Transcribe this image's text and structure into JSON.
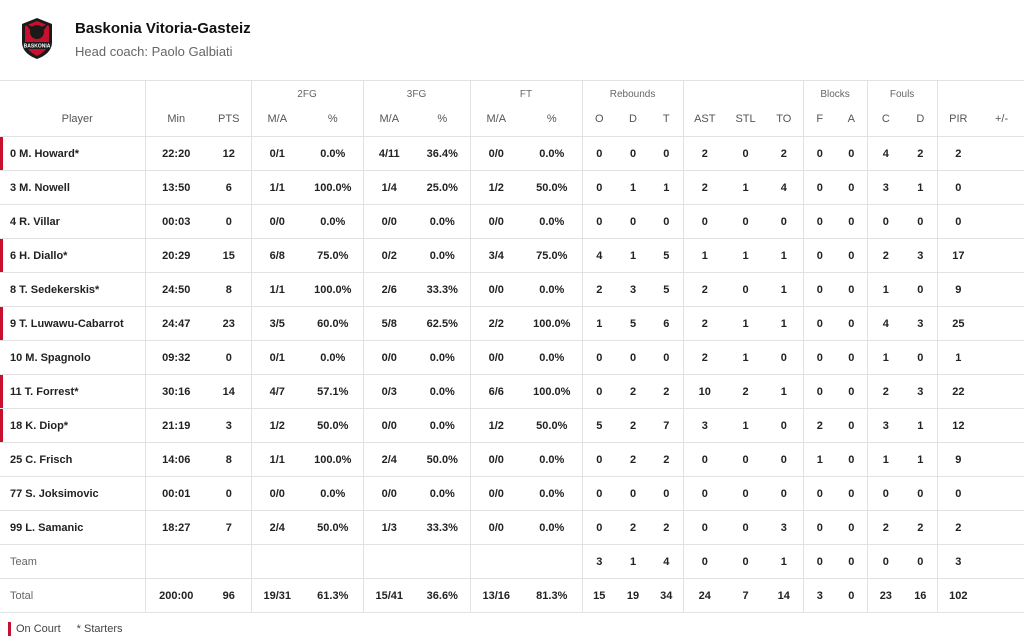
{
  "header": {
    "team_name": "Baskonia Vitoria-Gasteiz",
    "coach": "Head coach: Paolo Galbiati",
    "logo_text": "BASKONIA"
  },
  "colors": {
    "accent": "#c8102e",
    "border": "#e2e2e2"
  },
  "groups": {
    "fg2": "2FG",
    "fg3": "3FG",
    "ft": "FT",
    "reb": "Rebounds",
    "blk": "Blocks",
    "fouls": "Fouls"
  },
  "columns": [
    "Player",
    "Min",
    "PTS",
    "M/A",
    "%",
    "M/A",
    "%",
    "M/A",
    "%",
    "O",
    "D",
    "T",
    "AST",
    "STL",
    "TO",
    "F",
    "A",
    "C",
    "D",
    "PIR",
    "+/-"
  ],
  "players": [
    {
      "name": "0 M. Howard*",
      "on_court": true,
      "stats": [
        "22:20",
        "12",
        "0/1",
        "0.0%",
        "4/11",
        "36.4%",
        "0/0",
        "0.0%",
        "0",
        "0",
        "0",
        "2",
        "0",
        "2",
        "0",
        "0",
        "4",
        "2",
        "2",
        ""
      ]
    },
    {
      "name": "3 M. Nowell",
      "on_court": false,
      "stats": [
        "13:50",
        "6",
        "1/1",
        "100.0%",
        "1/4",
        "25.0%",
        "1/2",
        "50.0%",
        "0",
        "1",
        "1",
        "2",
        "1",
        "4",
        "0",
        "0",
        "3",
        "1",
        "0",
        ""
      ]
    },
    {
      "name": "4 R. Villar",
      "on_court": false,
      "stats": [
        "00:03",
        "0",
        "0/0",
        "0.0%",
        "0/0",
        "0.0%",
        "0/0",
        "0.0%",
        "0",
        "0",
        "0",
        "0",
        "0",
        "0",
        "0",
        "0",
        "0",
        "0",
        "0",
        ""
      ]
    },
    {
      "name": "6 H. Diallo*",
      "on_court": true,
      "stats": [
        "20:29",
        "15",
        "6/8",
        "75.0%",
        "0/2",
        "0.0%",
        "3/4",
        "75.0%",
        "4",
        "1",
        "5",
        "1",
        "1",
        "1",
        "0",
        "0",
        "2",
        "3",
        "17",
        ""
      ]
    },
    {
      "name": "8 T. Sedekerskis*",
      "on_court": false,
      "stats": [
        "24:50",
        "8",
        "1/1",
        "100.0%",
        "2/6",
        "33.3%",
        "0/0",
        "0.0%",
        "2",
        "3",
        "5",
        "2",
        "0",
        "1",
        "0",
        "0",
        "1",
        "0",
        "9",
        ""
      ]
    },
    {
      "name": "9 T. Luwawu-Cabarrot",
      "on_court": true,
      "stats": [
        "24:47",
        "23",
        "3/5",
        "60.0%",
        "5/8",
        "62.5%",
        "2/2",
        "100.0%",
        "1",
        "5",
        "6",
        "2",
        "1",
        "1",
        "0",
        "0",
        "4",
        "3",
        "25",
        ""
      ]
    },
    {
      "name": "10 M. Spagnolo",
      "on_court": false,
      "stats": [
        "09:32",
        "0",
        "0/1",
        "0.0%",
        "0/0",
        "0.0%",
        "0/0",
        "0.0%",
        "0",
        "0",
        "0",
        "2",
        "1",
        "0",
        "0",
        "0",
        "1",
        "0",
        "1",
        ""
      ]
    },
    {
      "name": "11 T. Forrest*",
      "on_court": true,
      "stats": [
        "30:16",
        "14",
        "4/7",
        "57.1%",
        "0/3",
        "0.0%",
        "6/6",
        "100.0%",
        "0",
        "2",
        "2",
        "10",
        "2",
        "1",
        "0",
        "0",
        "2",
        "3",
        "22",
        ""
      ]
    },
    {
      "name": "18 K. Diop*",
      "on_court": true,
      "stats": [
        "21:19",
        "3",
        "1/2",
        "50.0%",
        "0/0",
        "0.0%",
        "1/2",
        "50.0%",
        "5",
        "2",
        "7",
        "3",
        "1",
        "0",
        "2",
        "0",
        "3",
        "1",
        "12",
        ""
      ]
    },
    {
      "name": "25 C. Frisch",
      "on_court": false,
      "stats": [
        "14:06",
        "8",
        "1/1",
        "100.0%",
        "2/4",
        "50.0%",
        "0/0",
        "0.0%",
        "0",
        "2",
        "2",
        "0",
        "0",
        "0",
        "1",
        "0",
        "1",
        "1",
        "9",
        ""
      ]
    },
    {
      "name": "77 S. Joksimovic",
      "on_court": false,
      "stats": [
        "00:01",
        "0",
        "0/0",
        "0.0%",
        "0/0",
        "0.0%",
        "0/0",
        "0.0%",
        "0",
        "0",
        "0",
        "0",
        "0",
        "0",
        "0",
        "0",
        "0",
        "0",
        "0",
        ""
      ]
    },
    {
      "name": "99 L. Samanic",
      "on_court": false,
      "stats": [
        "18:27",
        "7",
        "2/4",
        "50.0%",
        "1/3",
        "33.3%",
        "0/0",
        "0.0%",
        "0",
        "2",
        "2",
        "0",
        "0",
        "3",
        "0",
        "0",
        "2",
        "2",
        "2",
        ""
      ]
    }
  ],
  "team_row": {
    "label": "Team",
    "stats": [
      "",
      "",
      "",
      "",
      "",
      "",
      "",
      "",
      "3",
      "1",
      "4",
      "0",
      "0",
      "1",
      "0",
      "0",
      "0",
      "0",
      "3",
      ""
    ]
  },
  "total_row": {
    "label": "Total",
    "stats": [
      "200:00",
      "96",
      "19/31",
      "61.3%",
      "15/41",
      "36.6%",
      "13/16",
      "81.3%",
      "15",
      "19",
      "34",
      "24",
      "7",
      "14",
      "3",
      "0",
      "23",
      "16",
      "102",
      ""
    ]
  },
  "legend": {
    "on_court": "On Court",
    "starters": "* Starters"
  }
}
